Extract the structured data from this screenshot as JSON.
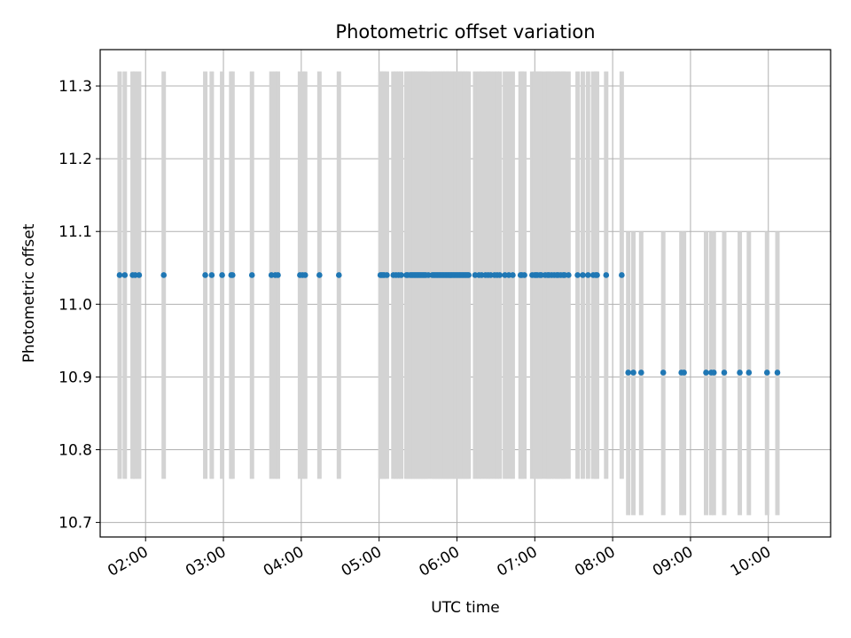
{
  "chart_data": {
    "type": "scatter",
    "title": "Photometric offset variation",
    "xlabel": "UTC time",
    "ylabel": "Photometric offset",
    "x_is_time": true,
    "xlim": [
      "01:25",
      "10:48"
    ],
    "ylim": [
      10.68,
      11.35
    ],
    "grid": true,
    "x_ticks": [
      "02:00",
      "03:00",
      "04:00",
      "05:00",
      "06:00",
      "07:00",
      "08:00",
      "09:00",
      "10:00"
    ],
    "y_ticks": [
      "10.7",
      "10.8",
      "10.9",
      "11.0",
      "11.1",
      "11.2",
      "11.3"
    ],
    "colors": {
      "points": "#1f77b4",
      "error_bars": "#d3d3d3",
      "grid": "#b0b0b0"
    },
    "series": [
      {
        "y": 11.04,
        "err_low": 10.76,
        "err_high": 11.32,
        "x": [
          "01:40",
          "01:44",
          "01:50",
          "01:52",
          "01:55",
          "02:14",
          "02:46",
          "02:51",
          "02:59",
          "03:06",
          "03:07",
          "03:22",
          "03:37",
          "03:40",
          "03:42",
          "03:59",
          "04:01",
          "04:03",
          "04:14",
          "04:29",
          "05:01",
          "05:02",
          "05:03",
          "05:04",
          "05:06",
          "05:11",
          "05:13",
          "05:15",
          "05:17",
          "05:21",
          "05:22",
          "05:24",
          "05:25",
          "05:26",
          "05:27",
          "05:28",
          "05:29",
          "05:30",
          "05:31",
          "05:32",
          "05:33",
          "05:34",
          "05:35",
          "05:36",
          "05:38",
          "05:41",
          "05:42",
          "05:43",
          "05:44",
          "05:45",
          "05:46",
          "05:47",
          "05:48",
          "05:49",
          "05:50",
          "05:51",
          "05:52",
          "05:53",
          "05:54",
          "05:55",
          "05:56",
          "05:57",
          "05:58",
          "05:59",
          "06:00",
          "06:01",
          "06:02",
          "06:03",
          "06:04",
          "06:05",
          "06:06",
          "06:07",
          "06:08",
          "06:09",
          "06:14",
          "06:17",
          "06:19",
          "06:22",
          "06:24",
          "06:26",
          "06:29",
          "06:31",
          "06:33",
          "06:37",
          "06:40",
          "06:43",
          "06:49",
          "06:50",
          "06:52",
          "06:58",
          "07:00",
          "07:01",
          "07:02",
          "07:04",
          "07:05",
          "07:08",
          "07:10",
          "07:11",
          "07:13",
          "07:15",
          "07:17",
          "07:18",
          "07:20",
          "07:22",
          "07:23",
          "07:26",
          "07:33",
          "07:37",
          "07:41",
          "07:45",
          "07:47",
          "07:48",
          "07:55",
          "08:07"
        ]
      },
      {
        "y": 10.906,
        "err_low": 10.71,
        "err_high": 11.1,
        "x": [
          "08:12",
          "08:16",
          "08:22",
          "08:39",
          "08:53",
          "08:55",
          "09:12",
          "09:16",
          "09:18",
          "09:26",
          "09:38",
          "09:45",
          "09:59",
          "10:07"
        ]
      }
    ]
  }
}
